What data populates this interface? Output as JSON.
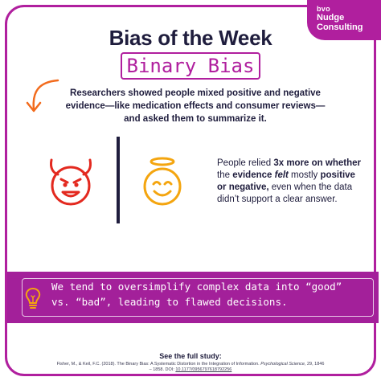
{
  "brand": {
    "bvo": "bvo",
    "line1": "Nudge",
    "line2": "Consulting"
  },
  "title": "Bias of the Week",
  "subtitle": "Binary Bias",
  "intro": "Researchers showed people mixed positive and negative evidence—like medication effects and consumer reviews—and asked them to summarize it.",
  "finding": {
    "p1": "People relied ",
    "b1": "3x more on whether",
    "p2": " the ",
    "b2": "evidence ",
    "i1": "felt",
    "p3": " mostly ",
    "b3": "positive or negative,",
    "p4": " even when the data didn’t support a clear answer."
  },
  "banner": "We tend to oversimplify complex data into “good” vs. “bad”, leading to flawed decisions.",
  "study": {
    "heading": "See the full study:",
    "c1": "Fisher, M., & Keil, F.C. (2018). The Binary Bias: A Systematic Distortion in the Integration of Information. ",
    "c2": "Psychological Science",
    "c3": ", 29, 1846 – 1858. DOI: ",
    "doi": "10.1177/0956797618792256"
  },
  "icons": {
    "arrow": "curved-arrow-icon",
    "devil": "devil-face-icon",
    "angel": "angel-face-icon",
    "bulb": "lightbulb-icon"
  },
  "colors": {
    "accent": "#b01f9e",
    "banner": "#a3209a",
    "devil": "#e3291f",
    "angel": "#f4a50f",
    "text": "#1f1d3d"
  }
}
